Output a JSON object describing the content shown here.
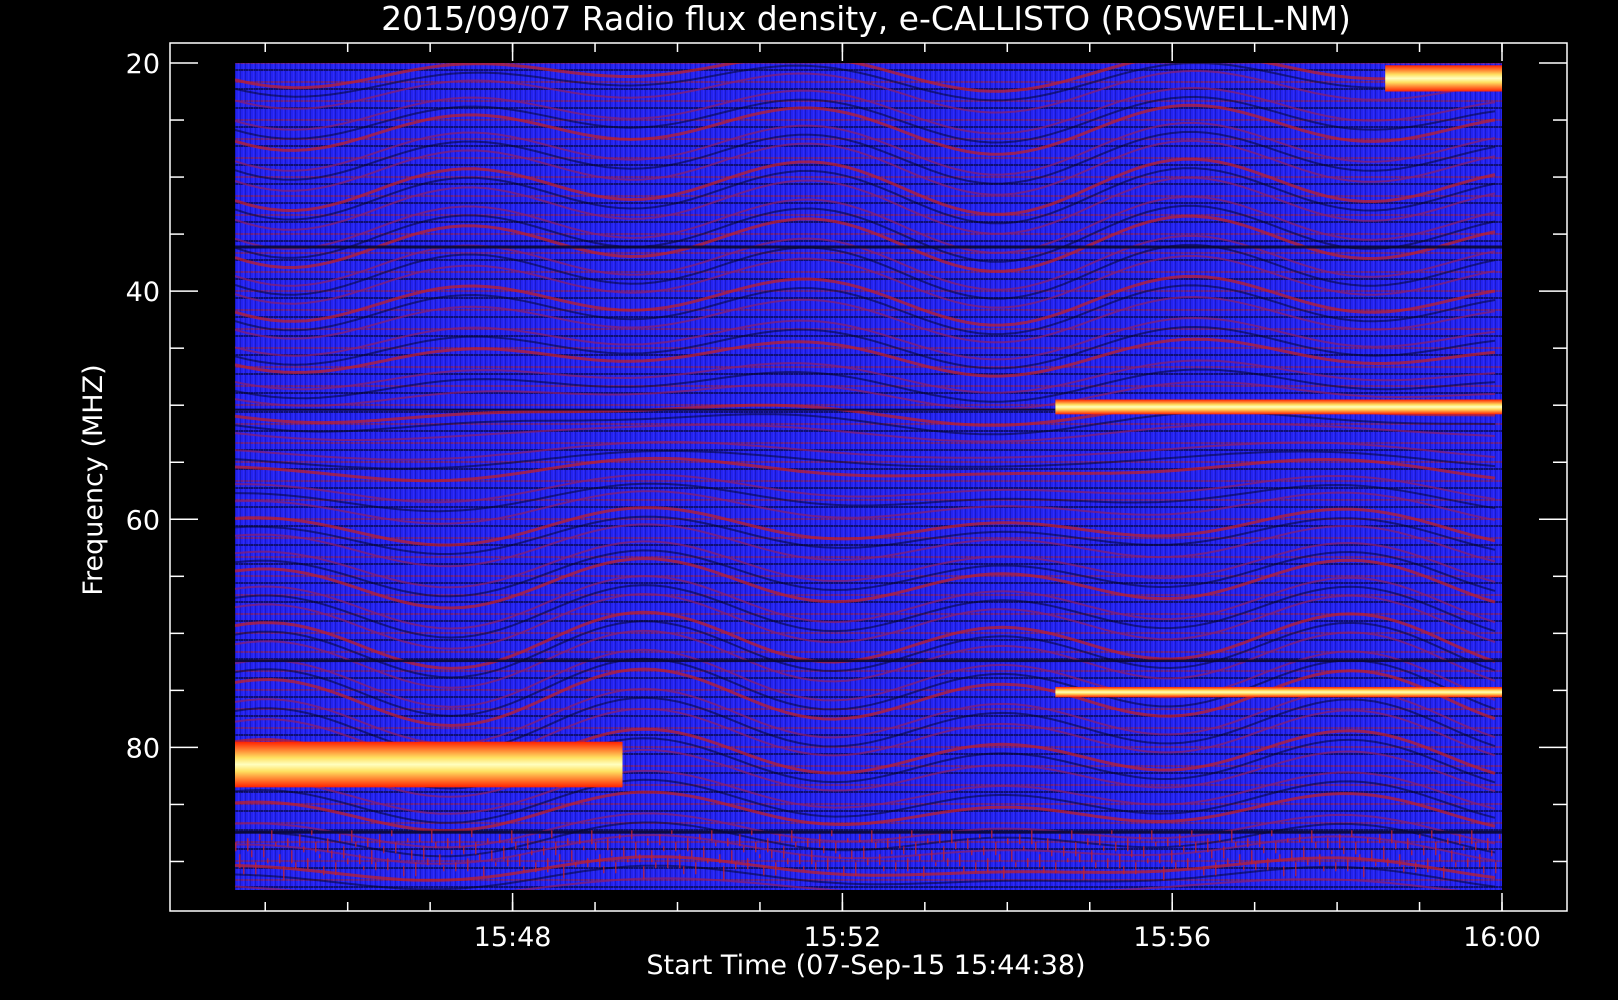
{
  "chart_data": {
    "type": "heatmap",
    "title": "2015/09/07  Radio flux density, e-CALLISTO (ROSWELL-NM)",
    "xlabel": "Start Time (07-Sep-15 15:44:38)",
    "ylabel": "Frequency (MHZ)",
    "x_range": [
      "15:44:38",
      "16:00:00"
    ],
    "y_range": [
      20,
      92.5
    ],
    "y_inverted": true,
    "x_ticks": [
      "15:48",
      "15:52",
      "15:56",
      "16:00"
    ],
    "y_ticks": [
      20,
      40,
      60,
      80
    ],
    "colormap": [
      "#000000",
      "#1c1ce6",
      "#3a2bff",
      "#b01a30",
      "#ff2000",
      "#ffe060",
      "#ffffc0"
    ],
    "features": [
      {
        "name": "bright band",
        "start": "15:44:38",
        "end": "15:49:20",
        "freq_mhz": [
          79.5,
          83.5
        ]
      },
      {
        "name": "narrowband line",
        "start": "15:54:35",
        "end": "16:00:00",
        "freq_mhz": [
          49.5,
          50.8
        ]
      },
      {
        "name": "emission",
        "start": "15:58:35",
        "end": "16:00:00",
        "freq_mhz": [
          20.2,
          22.5
        ]
      },
      {
        "name": "line",
        "start": "15:54:35",
        "end": "16:00:00",
        "freq_mhz": [
          74.7,
          75.6
        ]
      }
    ],
    "grid": false,
    "background": "#000000"
  }
}
